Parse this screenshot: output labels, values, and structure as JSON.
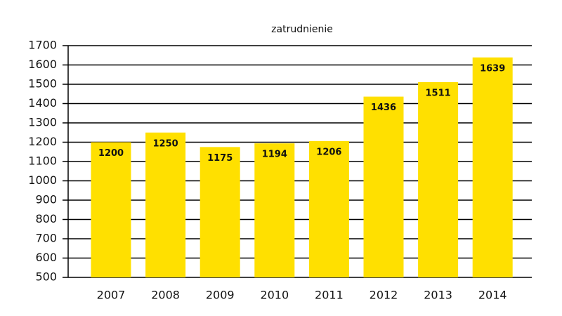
{
  "chart_data": {
    "type": "bar",
    "title": "zatrudnienie",
    "categories": [
      "2007",
      "2008",
      "2009",
      "2010",
      "2011",
      "2012",
      "2013",
      "2014"
    ],
    "values": [
      1200,
      1250,
      1175,
      1194,
      1206,
      1436,
      1511,
      1639
    ],
    "color": "#ffe000",
    "ylim": [
      500,
      1700
    ],
    "yticks": [
      500,
      600,
      700,
      800,
      900,
      1000,
      1100,
      1200,
      1300,
      1400,
      1500,
      1600,
      1700
    ],
    "grid": true
  }
}
